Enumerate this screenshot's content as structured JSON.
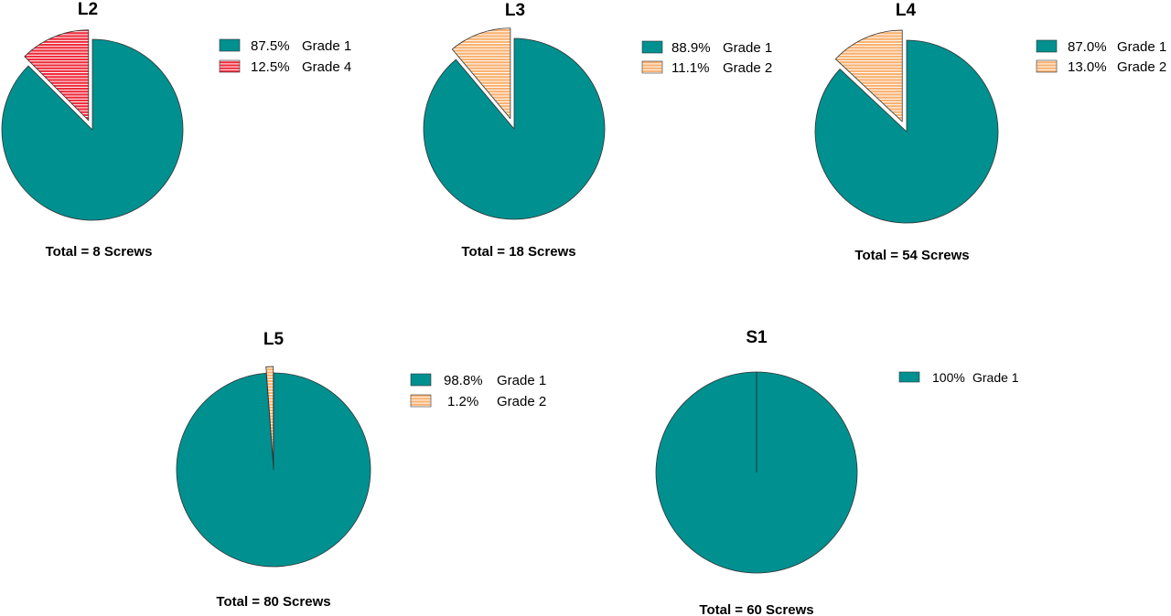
{
  "chart_data": [
    {
      "type": "pie",
      "title": "L2",
      "total_label": "Total = 8 Screws",
      "slices": [
        {
          "label": "87.5%",
          "name": "Grade 1",
          "value": 87.5,
          "color": "#009090",
          "pattern": "solid",
          "exploded": false
        },
        {
          "label": "12.5%",
          "name": "Grade 4",
          "value": 12.5,
          "color": "#ee2a3a",
          "pattern": "striped",
          "exploded": true
        }
      ]
    },
    {
      "type": "pie",
      "title": "L3",
      "total_label": "Total = 18 Screws",
      "slices": [
        {
          "label": "88.9%",
          "name": "Grade 1",
          "value": 88.9,
          "color": "#009090",
          "pattern": "solid",
          "exploded": false
        },
        {
          "label": "11.1%",
          "name": "Grade 2",
          "value": 11.1,
          "color": "#f9b06e",
          "pattern": "striped",
          "exploded": true
        }
      ]
    },
    {
      "type": "pie",
      "title": "L4",
      "total_label": "Total = 54 Screws",
      "slices": [
        {
          "label": "87.0%",
          "name": "Grade 1",
          "value": 87.0,
          "color": "#009090",
          "pattern": "solid",
          "exploded": false
        },
        {
          "label": "13.0%",
          "name": "Grade 2",
          "value": 13.0,
          "color": "#f9b06e",
          "pattern": "striped",
          "exploded": true
        }
      ]
    },
    {
      "type": "pie",
      "title": "L5",
      "total_label": "Total = 80 Screws",
      "slices": [
        {
          "label": "98.8%",
          "name": "Grade 1",
          "value": 98.8,
          "color": "#009090",
          "pattern": "solid",
          "exploded": false
        },
        {
          "label": "1.2%",
          "name": "Grade 2",
          "value": 1.2,
          "color": "#f9b06e",
          "pattern": "striped",
          "exploded": true
        }
      ]
    },
    {
      "type": "pie",
      "title": "S1",
      "total_label": "Total = 60 Screws",
      "slices": [
        {
          "label": "100%",
          "name": "Grade 1",
          "value": 100,
          "color": "#009090",
          "pattern": "solid",
          "exploded": false
        }
      ]
    }
  ]
}
